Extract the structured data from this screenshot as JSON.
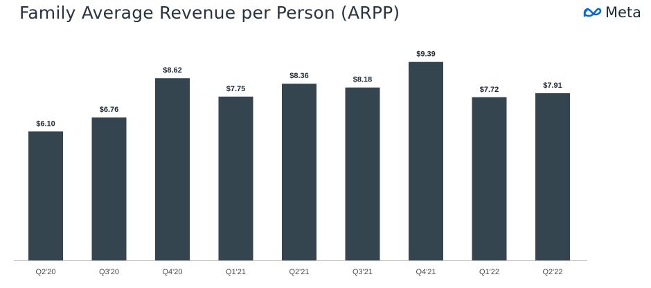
{
  "header": {
    "title": "Family Average Revenue per Person (ARPP)",
    "brand_name": "Meta",
    "brand_icon": "meta-infinity-logo",
    "brand_color": "#0668E1"
  },
  "chart_data": {
    "type": "bar",
    "title": "Family Average Revenue per Person (ARPP)",
    "xlabel": "",
    "ylabel": "",
    "categories": [
      "Q2'20",
      "Q3'20",
      "Q4'20",
      "Q1'21",
      "Q2'21",
      "Q3'21",
      "Q4'21",
      "Q1'22",
      "Q2'22"
    ],
    "values": [
      6.1,
      6.76,
      8.62,
      7.75,
      8.36,
      8.18,
      9.39,
      7.72,
      7.91
    ],
    "data_labels": [
      "$6.10",
      "$6.76",
      "$8.62",
      "$7.75",
      "$8.36",
      "$8.18",
      "$9.39",
      "$7.72",
      "$7.91"
    ],
    "ylim": [
      0,
      10
    ],
    "grid": false,
    "legend": "none",
    "bar_color": "#354550"
  }
}
